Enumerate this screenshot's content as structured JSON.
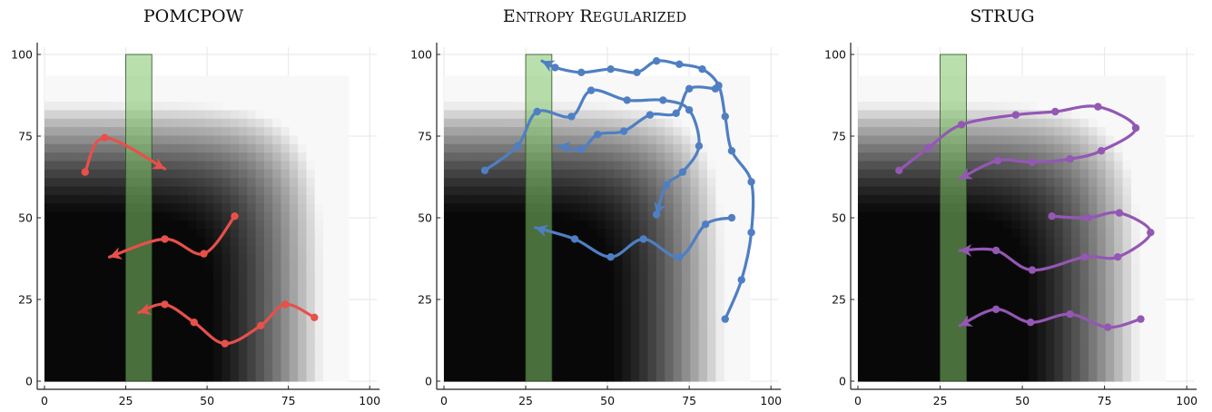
{
  "chart_data": [
    {
      "type": "line",
      "title": "POMCPOW",
      "title_small_caps": false,
      "xlim": [
        0,
        100
      ],
      "ylim": [
        0,
        100
      ],
      "xticks": [
        0,
        25,
        50,
        75,
        100
      ],
      "yticks": [
        0,
        25,
        50,
        75,
        100
      ],
      "grid": true,
      "background": "grayscale field, black at the origin, fading to white toward x≈93 and y≈93",
      "region": {
        "x": [
          25,
          33
        ],
        "y": [
          0,
          100
        ],
        "color": "#7fc46a"
      },
      "series_color": "#e8504a",
      "series": [
        {
          "points": [
            [
              12.5,
              64
            ],
            [
              18.5,
              74.5
            ],
            [
              37,
              65
            ]
          ],
          "markers": [
            0,
            1
          ]
        },
        {
          "points": [
            [
              58.5,
              50.5
            ],
            [
              49,
              39
            ],
            [
              37,
              43.5
            ],
            [
              20,
              38
            ]
          ],
          "markers": [
            0,
            1,
            2
          ]
        },
        {
          "points": [
            [
              83,
              19.5
            ],
            [
              74,
              23.5
            ],
            [
              66.5,
              17
            ],
            [
              55.5,
              11.5
            ],
            [
              46,
              18
            ],
            [
              37,
              23.5
            ],
            [
              29,
              21
            ]
          ],
          "markers": [
            0,
            1,
            2,
            3,
            4,
            5
          ]
        }
      ]
    },
    {
      "type": "line",
      "title": "Entropy Regularized",
      "title_small_caps": true,
      "xlim": [
        0,
        100
      ],
      "ylim": [
        0,
        100
      ],
      "xticks": [
        0,
        25,
        50,
        75,
        100
      ],
      "yticks": [
        0,
        25,
        50,
        75,
        100
      ],
      "grid": true,
      "background": "grayscale field, black at the origin, fading to white toward x≈93 and y≈93",
      "region": {
        "x": [
          25,
          33
        ],
        "y": [
          0,
          100
        ],
        "color": "#7fc46a"
      },
      "series_color": "#4f7fc3",
      "series": [
        {
          "points": [
            [
              12.5,
              64.5
            ],
            [
              22.5,
              72
            ],
            [
              28.5,
              82.5
            ],
            [
              39,
              81
            ],
            [
              45,
              89
            ],
            [
              56,
              86
            ],
            [
              67,
              86
            ],
            [
              75,
              83
            ],
            [
              78,
              72
            ],
            [
              73,
              64
            ],
            [
              68,
              60
            ],
            [
              65,
              51
            ]
          ],
          "markers": [
            0,
            1,
            2,
            3,
            4,
            5,
            6,
            7,
            8,
            9,
            10,
            11
          ]
        },
        {
          "points": [
            [
              86,
              19
            ],
            [
              91,
              31
            ],
            [
              94,
              45.5
            ],
            [
              94,
              61
            ],
            [
              88,
              70.5
            ],
            [
              86,
              81
            ],
            [
              84,
              90.5
            ],
            [
              79,
              95.5
            ],
            [
              72,
              97
            ],
            [
              65,
              98
            ],
            [
              59,
              94.5
            ],
            [
              51,
              95.5
            ],
            [
              42,
              94.5
            ],
            [
              34,
              96
            ],
            [
              30,
              98
            ]
          ],
          "markers": [
            0,
            1,
            2,
            3,
            4,
            5,
            6,
            7,
            8,
            9,
            10,
            11,
            12,
            13
          ]
        },
        {
          "points": [
            [
              88,
              50
            ],
            [
              80,
              48
            ],
            [
              72,
              38
            ],
            [
              61,
              43.5
            ],
            [
              51,
              38
            ],
            [
              40,
              43.5
            ],
            [
              28,
              47
            ]
          ],
          "markers": [
            0,
            1,
            2,
            3,
            4,
            5
          ]
        },
        {
          "points": [
            [
              83,
              89.5
            ],
            [
              75,
              89.5
            ],
            [
              71,
              82
            ],
            [
              63,
              81.5
            ],
            [
              55,
              76.5
            ],
            [
              47,
              75.5
            ],
            [
              42,
              71
            ],
            [
              35,
              72
            ]
          ],
          "markers": [
            0,
            1,
            2,
            3,
            4,
            5,
            6
          ]
        }
      ]
    },
    {
      "type": "line",
      "title": "STRUG",
      "title_small_caps": false,
      "xlim": [
        0,
        100
      ],
      "ylim": [
        0,
        100
      ],
      "xticks": [
        0,
        25,
        50,
        75,
        100
      ],
      "yticks": [
        0,
        25,
        50,
        75,
        100
      ],
      "grid": true,
      "background": "grayscale field, black at the origin, fading to white toward x≈93 and y≈93",
      "region": {
        "x": [
          25,
          33
        ],
        "y": [
          0,
          100
        ],
        "color": "#7fc46a"
      },
      "series_color": "#9457b4",
      "series": [
        {
          "points": [
            [
              12.5,
              64.5
            ],
            [
              21.5,
              71.5
            ],
            [
              31.5,
              78.5
            ],
            [
              48,
              81.5
            ],
            [
              60,
              82.5
            ],
            [
              73,
              84
            ],
            [
              84.5,
              77.5
            ],
            [
              74,
              70.5
            ],
            [
              64.5,
              68
            ],
            [
              53,
              67
            ],
            [
              42.5,
              67.5
            ],
            [
              31,
              62
            ]
          ],
          "markers": [
            0,
            1,
            2,
            3,
            4,
            5,
            6,
            7,
            8,
            9,
            10
          ]
        },
        {
          "points": [
            [
              59,
              50.5
            ],
            [
              70,
              50
            ],
            [
              79.5,
              51.5
            ],
            [
              89,
              45.5
            ],
            [
              79,
              38
            ],
            [
              69,
              38
            ],
            [
              53,
              34
            ],
            [
              42,
              40
            ],
            [
              31,
              40
            ]
          ],
          "markers": [
            0,
            1,
            2,
            3,
            4,
            5,
            6,
            7
          ]
        },
        {
          "points": [
            [
              86,
              19
            ],
            [
              76,
              16.5
            ],
            [
              64.5,
              20.5
            ],
            [
              52.5,
              18
            ],
            [
              42,
              22
            ],
            [
              31,
              17
            ]
          ],
          "markers": [
            0,
            1,
            2,
            3,
            4
          ]
        }
      ]
    }
  ]
}
